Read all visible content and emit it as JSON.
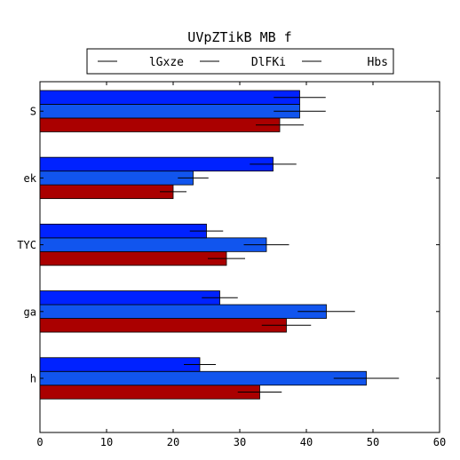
{
  "chart_data": {
    "type": "bar",
    "orientation": "horizontal",
    "title": "UVpZTikB  MB f",
    "xlabel": "",
    "ylabel": "",
    "xlim": [
      0,
      60
    ],
    "x_ticks": [
      0,
      10,
      20,
      30,
      40,
      50,
      60
    ],
    "grid": false,
    "legend_position": "top-center",
    "categories": [
      "h",
      "ga",
      "TYC",
      "ek",
      "S"
    ],
    "series": [
      {
        "name": "lGxze",
        "color": "#aa0000",
        "values": [
          33,
          37,
          28,
          20,
          36
        ],
        "errors": [
          3.3,
          3.7,
          2.8,
          2.0,
          3.6
        ]
      },
      {
        "name": "DlFKi",
        "color": "#1155ee",
        "values": [
          49,
          43,
          34,
          23,
          39
        ],
        "errors": [
          4.9,
          4.3,
          3.4,
          2.3,
          3.9
        ]
      },
      {
        "name": "Hbs",
        "color": "#0022ff",
        "values": [
          24,
          27,
          25,
          35,
          39
        ],
        "errors": [
          2.4,
          2.7,
          2.5,
          3.5,
          3.9
        ]
      }
    ]
  }
}
